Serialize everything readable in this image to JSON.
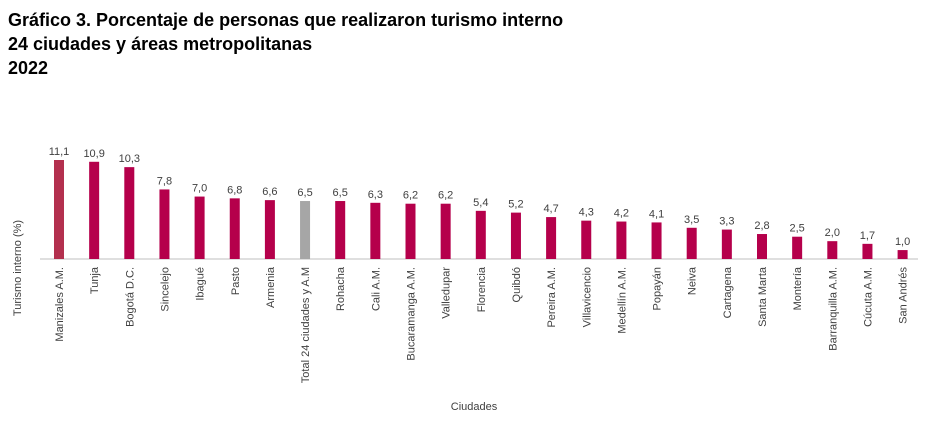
{
  "title": {
    "line1": "Gráfico 3. Porcentaje de personas que realizaron turismo interno",
    "line2": "24 ciudades y áreas metropolitanas",
    "line3": "2022"
  },
  "chart_data": {
    "type": "bar",
    "xlabel": "Ciudades",
    "ylabel": "Turismo interno (%)",
    "ylim": [
      0,
      12
    ],
    "grid": false,
    "categories": [
      "Manizales A.M.",
      "Tunja",
      "Bogotá D.C.",
      "Sincelejo",
      "Ibagué",
      "Pasto",
      "Armenia",
      "Total 24 ciudades y A.M",
      "Rohacha",
      "Cali A.M.",
      "Bucaramanga A.M.",
      "Valledupar",
      "Florencia",
      "Quibdó",
      "Pereira A.M.",
      "Villavicencio",
      "Medellín A.M.",
      "Popayán",
      "Neiva",
      "Cartagena",
      "Santa Marta",
      "Montería",
      "Barranquilla A.M.",
      "Cúcuta A.M.",
      "San Andrés"
    ],
    "values": [
      11.1,
      10.9,
      10.3,
      7.8,
      7.0,
      6.8,
      6.6,
      6.5,
      6.5,
      6.3,
      6.2,
      6.2,
      5.4,
      5.2,
      4.7,
      4.3,
      4.2,
      4.1,
      3.5,
      3.3,
      2.8,
      2.5,
      2.0,
      1.7,
      1.0
    ],
    "value_labels": [
      "11,1",
      "10,9",
      "10,3",
      "7,8",
      "7,0",
      "6,8",
      "6,6",
      "6,5",
      "6,5",
      "6,3",
      "6,2",
      "6,2",
      "5,4",
      "5,2",
      "4,7",
      "4,3",
      "4,2",
      "4,1",
      "3,5",
      "3,3",
      "2,8",
      "2,5",
      "2,0",
      "1,7",
      "1,0"
    ],
    "colors": {
      "default": "#b5004b",
      "highlight_first": "#b3304e",
      "total": "#a6a6a6",
      "axis": "#bfbfbf",
      "label": "#404040"
    }
  }
}
